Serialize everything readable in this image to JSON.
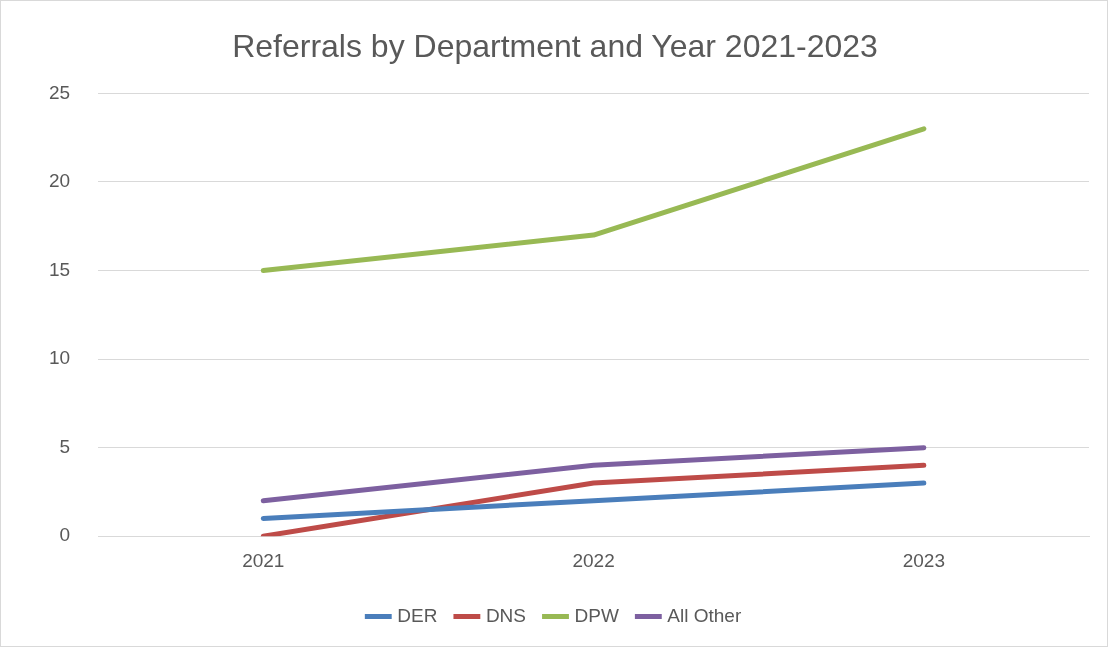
{
  "chart_data": {
    "type": "line",
    "title": "Referrals by Department and Year 2021-2023",
    "categories": [
      "2021",
      "2022",
      "2023"
    ],
    "series": [
      {
        "name": "DER",
        "color": "#4a7ebb",
        "values": [
          1,
          2,
          3
        ]
      },
      {
        "name": "DNS",
        "color": "#be4b48",
        "values": [
          0,
          3,
          4
        ]
      },
      {
        "name": "DPW",
        "color": "#98b954",
        "values": [
          15,
          17,
          23
        ]
      },
      {
        "name": "All Other",
        "color": "#7d60a0",
        "values": [
          2,
          4,
          5
        ]
      }
    ],
    "ylim": [
      0,
      25
    ],
    "yticks": [
      0,
      5,
      10,
      15,
      20,
      25
    ],
    "grid": "y",
    "legend": "bottom",
    "marker": "none",
    "line_style": "solid"
  }
}
